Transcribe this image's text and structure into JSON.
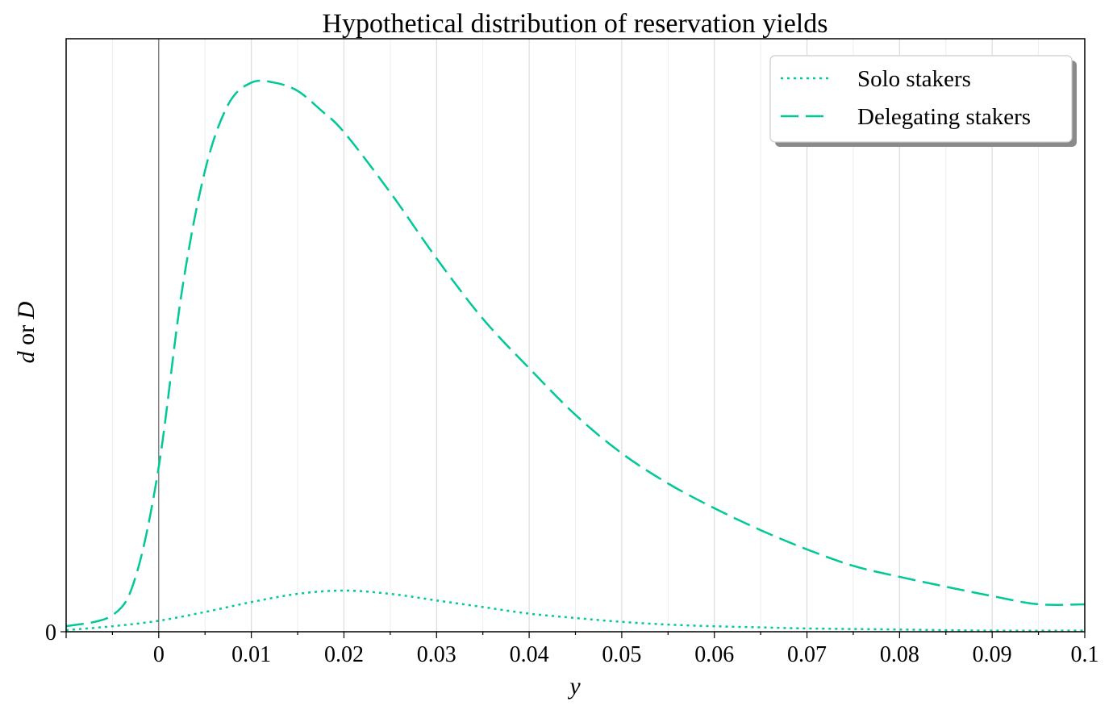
{
  "chart_data": {
    "type": "line",
    "title": "Hypothetical distribution of reservation yields",
    "xlabel": "y",
    "ylabel_italic_1": "d",
    "ylabel_mid": " or ",
    "ylabel_italic_2": "D",
    "xlim": [
      -0.01,
      0.1
    ],
    "ylim": [
      0,
      1.08
    ],
    "xticks": [
      0,
      0.01,
      0.02,
      0.03,
      0.04,
      0.05,
      0.06,
      0.07,
      0.08,
      0.09,
      0.1
    ],
    "xtick_labels": [
      "0",
      "0.01",
      "0.02",
      "0.03",
      "0.04",
      "0.05",
      "0.06",
      "0.07",
      "0.08",
      "0.09",
      "0.1"
    ],
    "yticks": [
      0
    ],
    "ytick_labels": [
      "0"
    ],
    "grid": "vertical",
    "legend_position": "top-right",
    "color": "#00c896",
    "series": [
      {
        "name": "Solo stakers",
        "style": "dotted",
        "x": [
          -0.01,
          -0.005,
          0,
          0.005,
          0.01,
          0.015,
          0.02,
          0.025,
          0.03,
          0.035,
          0.04,
          0.045,
          0.05,
          0.055,
          0.06,
          0.065,
          0.07,
          0.08,
          0.09,
          0.1
        ],
        "y": [
          0.003,
          0.01,
          0.02,
          0.036,
          0.054,
          0.069,
          0.075,
          0.069,
          0.057,
          0.045,
          0.033,
          0.025,
          0.018,
          0.013,
          0.01,
          0.008,
          0.006,
          0.004,
          0.002,
          0.002
        ]
      },
      {
        "name": "Delegating stakers",
        "style": "dashed",
        "x": [
          -0.01,
          -0.005,
          -0.0025,
          0,
          0.0025,
          0.005,
          0.0075,
          0.01,
          0.0125,
          0.015,
          0.0175,
          0.02,
          0.025,
          0.03,
          0.035,
          0.04,
          0.045,
          0.05,
          0.055,
          0.06,
          0.065,
          0.07,
          0.075,
          0.08,
          0.085,
          0.09,
          0.095,
          0.1
        ],
        "y": [
          0.01,
          0.03,
          0.1,
          0.3,
          0.62,
          0.84,
          0.96,
          1.0,
          1.0,
          0.985,
          0.95,
          0.91,
          0.8,
          0.68,
          0.57,
          0.48,
          0.395,
          0.325,
          0.27,
          0.225,
          0.185,
          0.15,
          0.12,
          0.1,
          0.082,
          0.065,
          0.05,
          0.05
        ]
      }
    ]
  }
}
